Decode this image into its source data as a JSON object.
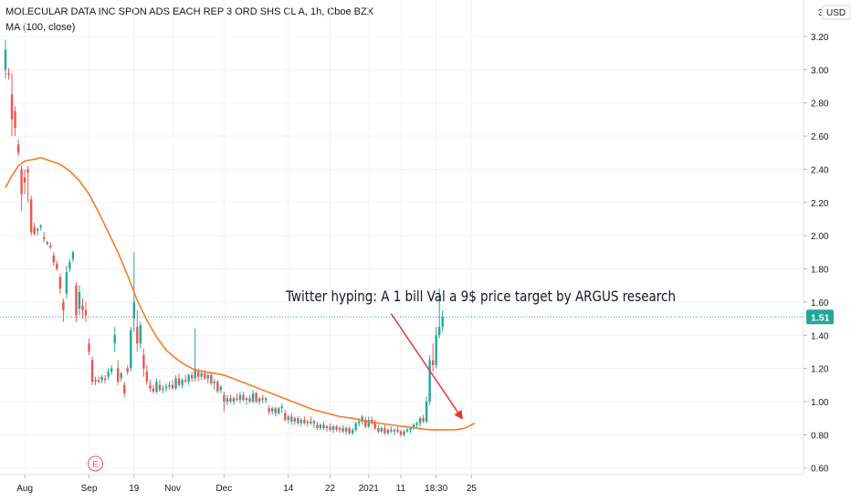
{
  "chart_data": {
    "type": "candlestick",
    "title": "MOLECULAR DATA INC SPON ADS EACH REP 3 ORD SHS CL A, 1h, Cboe BZX",
    "indicator_label": "MA (100, close)",
    "currency": "USD",
    "y_axis_top_label": "3",
    "ylim": [
      0.56,
      3.42
    ],
    "yticks": [
      "0.60",
      "0.80",
      "1.00",
      "1.20",
      "1.40",
      "1.60",
      "1.80",
      "2.00",
      "2.20",
      "2.40",
      "2.60",
      "2.80",
      "3.00",
      "3.20"
    ],
    "xticks": [
      {
        "i": 6,
        "label": "Aug"
      },
      {
        "i": 26,
        "label": "Sep"
      },
      {
        "i": 40,
        "label": "19"
      },
      {
        "i": 52,
        "label": "Nov"
      },
      {
        "i": 68,
        "label": "Dec"
      },
      {
        "i": 88,
        "label": "14"
      },
      {
        "i": 101,
        "label": "22"
      },
      {
        "i": 113,
        "label": "2021"
      },
      {
        "i": 123,
        "label": "11"
      },
      {
        "i": 134,
        "label": "18:30"
      },
      {
        "i": 145,
        "label": "25"
      }
    ],
    "last_price": "1.51",
    "last_price_value": 1.51,
    "earnings_marker": {
      "i": 28,
      "label": "E"
    },
    "annotation": "Twitter hyping: A 1 bill Val a 9$ price target by ARGUS research",
    "arrow": {
      "from": {
        "i": 120,
        "y": 1.53
      },
      "to": {
        "i": 142,
        "y": 0.9
      }
    },
    "colors": {
      "up": "#26a69a",
      "down": "#ef5350",
      "ma": "#f57c2b",
      "arrow": "#e53935",
      "price_label": "#26a69a",
      "text": "#131722",
      "axis": "#787b86"
    },
    "candles": [
      [
        3.0,
        3.18,
        2.95,
        3.12
      ],
      [
        2.98,
        3.01,
        2.94,
        2.97
      ],
      [
        2.85,
        2.98,
        2.6,
        2.7
      ],
      [
        2.75,
        2.78,
        2.6,
        2.65
      ],
      [
        2.55,
        2.58,
        2.48,
        2.5
      ],
      [
        2.4,
        2.42,
        2.15,
        2.25
      ],
      [
        2.35,
        2.4,
        2.25,
        2.32
      ],
      [
        2.4,
        2.42,
        2.2,
        2.38
      ],
      [
        2.22,
        2.24,
        2.0,
        2.02
      ],
      [
        2.05,
        2.08,
        2.0,
        2.01
      ],
      [
        2.03,
        2.05,
        2.0,
        2.04
      ],
      [
        2.05,
        2.07,
        2.03,
        2.06
      ],
      [
        1.99,
        2.02,
        1.96,
        1.98
      ],
      [
        1.95,
        1.97,
        1.94,
        1.96
      ],
      [
        1.94,
        1.96,
        1.92,
        1.93
      ],
      [
        1.88,
        1.9,
        1.82,
        1.84
      ],
      [
        1.83,
        1.85,
        1.79,
        1.8
      ],
      [
        1.75,
        1.77,
        1.65,
        1.68
      ],
      [
        1.6,
        1.62,
        1.48,
        1.55
      ],
      [
        1.65,
        1.82,
        1.62,
        1.78
      ],
      [
        1.8,
        1.86,
        1.78,
        1.84
      ],
      [
        1.86,
        1.91,
        1.84,
        1.9
      ],
      [
        1.7,
        1.72,
        1.48,
        1.52
      ],
      [
        1.56,
        1.7,
        1.52,
        1.66
      ],
      [
        1.58,
        1.62,
        1.5,
        1.55
      ],
      [
        1.55,
        1.6,
        1.48,
        1.52
      ],
      [
        1.35,
        1.38,
        1.28,
        1.3
      ],
      [
        1.25,
        1.27,
        1.1,
        1.12
      ],
      [
        1.12,
        1.15,
        1.1,
        1.13
      ],
      [
        1.13,
        1.15,
        1.11,
        1.12
      ],
      [
        1.13,
        1.16,
        1.11,
        1.15
      ],
      [
        1.14,
        1.16,
        1.11,
        1.13
      ],
      [
        1.15,
        1.2,
        1.13,
        1.18
      ],
      [
        1.18,
        1.22,
        1.16,
        1.2
      ],
      [
        1.35,
        1.45,
        1.3,
        1.4
      ],
      [
        1.2,
        1.25,
        1.1,
        1.12
      ],
      [
        1.14,
        1.18,
        1.12,
        1.17
      ],
      [
        1.1,
        1.12,
        1.03,
        1.05
      ],
      [
        1.2,
        1.22,
        1.16,
        1.18
      ],
      [
        1.2,
        1.45,
        1.18,
        1.43
      ],
      [
        1.5,
        1.9,
        1.42,
        1.6
      ],
      [
        1.45,
        1.55,
        1.3,
        1.35
      ],
      [
        1.35,
        1.48,
        1.32,
        1.46
      ],
      [
        1.28,
        1.32,
        1.15,
        1.2
      ],
      [
        1.18,
        1.22,
        1.1,
        1.12
      ],
      [
        1.1,
        1.13,
        1.06,
        1.08
      ],
      [
        1.08,
        1.1,
        1.05,
        1.06
      ],
      [
        1.06,
        1.14,
        1.05,
        1.12
      ],
      [
        1.1,
        1.13,
        1.06,
        1.07
      ],
      [
        1.07,
        1.1,
        1.05,
        1.08
      ],
      [
        1.08,
        1.11,
        1.06,
        1.09
      ],
      [
        1.09,
        1.12,
        1.07,
        1.1
      ],
      [
        1.1,
        1.13,
        1.07,
        1.08
      ],
      [
        1.08,
        1.16,
        1.07,
        1.14
      ],
      [
        1.14,
        1.17,
        1.09,
        1.1
      ],
      [
        1.1,
        1.14,
        1.08,
        1.13
      ],
      [
        1.13,
        1.16,
        1.11,
        1.12
      ],
      [
        1.12,
        1.17,
        1.1,
        1.16
      ],
      [
        1.16,
        1.18,
        1.12,
        1.14
      ],
      [
        1.14,
        1.44,
        1.12,
        1.2
      ],
      [
        1.18,
        1.2,
        1.12,
        1.15
      ],
      [
        1.15,
        1.19,
        1.13,
        1.17
      ],
      [
        1.17,
        1.19,
        1.13,
        1.14
      ],
      [
        1.14,
        1.17,
        1.11,
        1.16
      ],
      [
        1.16,
        1.18,
        1.1,
        1.11
      ],
      [
        1.11,
        1.14,
        1.07,
        1.12
      ],
      [
        1.12,
        1.13,
        1.05,
        1.06
      ],
      [
        1.07,
        1.1,
        1.05,
        1.09
      ],
      [
        1.04,
        1.06,
        0.94,
        1.0
      ],
      [
        1.0,
        1.04,
        0.98,
        1.02
      ],
      [
        1.02,
        1.04,
        0.99,
        1.0
      ],
      [
        1.0,
        1.03,
        0.98,
        1.02
      ],
      [
        1.02,
        1.05,
        1.0,
        1.01
      ],
      [
        1.01,
        1.06,
        0.99,
        1.04
      ],
      [
        1.04,
        1.06,
        1.0,
        1.01
      ],
      [
        1.01,
        1.03,
        0.98,
        1.02
      ],
      [
        1.02,
        1.04,
        0.99,
        1.0
      ],
      [
        1.0,
        1.07,
        0.99,
        1.05
      ],
      [
        1.05,
        1.06,
        0.99,
        1.0
      ],
      [
        1.0,
        1.03,
        0.98,
        1.02
      ],
      [
        1.02,
        1.04,
        0.99,
        1.01
      ],
      [
        1.01,
        1.03,
        0.99,
        1.02
      ],
      [
        0.96,
        0.98,
        0.92,
        0.94
      ],
      [
        0.94,
        0.97,
        0.92,
        0.96
      ],
      [
        0.96,
        0.97,
        0.91,
        0.93
      ],
      [
        0.93,
        0.97,
        0.92,
        0.96
      ],
      [
        0.96,
        0.99,
        0.93,
        0.97
      ],
      [
        0.93,
        0.95,
        0.88,
        0.89
      ],
      [
        0.89,
        0.92,
        0.87,
        0.91
      ],
      [
        0.91,
        0.93,
        0.86,
        0.88
      ],
      [
        0.88,
        0.91,
        0.86,
        0.9
      ],
      [
        0.9,
        0.91,
        0.86,
        0.87
      ],
      [
        0.87,
        0.9,
        0.85,
        0.89
      ],
      [
        0.89,
        0.91,
        0.86,
        0.87
      ],
      [
        0.87,
        0.89,
        0.85,
        0.88
      ],
      [
        0.88,
        0.91,
        0.86,
        0.87
      ],
      [
        0.87,
        0.89,
        0.84,
        0.88
      ],
      [
        0.86,
        0.88,
        0.83,
        0.84
      ],
      [
        0.84,
        0.87,
        0.83,
        0.86
      ],
      [
        0.86,
        0.88,
        0.83,
        0.84
      ],
      [
        0.84,
        0.86,
        0.82,
        0.85
      ],
      [
        0.85,
        0.87,
        0.82,
        0.83
      ],
      [
        0.83,
        0.86,
        0.81,
        0.85
      ],
      [
        0.85,
        0.86,
        0.82,
        0.83
      ],
      [
        0.83,
        0.85,
        0.81,
        0.84
      ],
      [
        0.84,
        0.86,
        0.81,
        0.82
      ],
      [
        0.82,
        0.85,
        0.8,
        0.84
      ],
      [
        0.84,
        0.85,
        0.8,
        0.81
      ],
      [
        0.81,
        0.84,
        0.8,
        0.83
      ],
      [
        0.83,
        0.88,
        0.82,
        0.87
      ],
      [
        0.87,
        0.9,
        0.85,
        0.88
      ],
      [
        0.88,
        0.92,
        0.86,
        0.91
      ],
      [
        0.89,
        0.91,
        0.84,
        0.85
      ],
      [
        0.85,
        0.91,
        0.84,
        0.89
      ],
      [
        0.89,
        0.91,
        0.86,
        0.87
      ],
      [
        0.87,
        0.89,
        0.83,
        0.84
      ],
      [
        0.84,
        0.86,
        0.81,
        0.82
      ],
      [
        0.82,
        0.85,
        0.81,
        0.84
      ],
      [
        0.84,
        0.86,
        0.8,
        0.81
      ],
      [
        0.81,
        0.84,
        0.8,
        0.83
      ],
      [
        0.83,
        0.85,
        0.81,
        0.82
      ],
      [
        0.82,
        0.84,
        0.8,
        0.83
      ],
      [
        0.83,
        0.85,
        0.81,
        0.82
      ],
      [
        0.82,
        0.83,
        0.79,
        0.8
      ],
      [
        0.8,
        0.83,
        0.79,
        0.82
      ],
      [
        0.82,
        0.84,
        0.81,
        0.83
      ],
      [
        0.83,
        0.85,
        0.81,
        0.84
      ],
      [
        0.84,
        0.87,
        0.83,
        0.86
      ],
      [
        0.86,
        0.88,
        0.84,
        0.87
      ],
      [
        0.87,
        0.91,
        0.85,
        0.9
      ],
      [
        0.9,
        0.92,
        0.87,
        0.88
      ],
      [
        0.88,
        1.03,
        0.87,
        1.0
      ],
      [
        1.0,
        1.28,
        0.98,
        1.25
      ],
      [
        1.25,
        1.35,
        1.18,
        1.22
      ],
      [
        1.22,
        1.45,
        1.2,
        1.4
      ],
      [
        1.4,
        1.68,
        1.38,
        1.45
      ],
      [
        1.45,
        1.55,
        1.42,
        1.51
      ]
    ],
    "ma100": [
      [
        0,
        2.29
      ],
      [
        2,
        2.36
      ],
      [
        4,
        2.42
      ],
      [
        6,
        2.45
      ],
      [
        9,
        2.46
      ],
      [
        11,
        2.47
      ],
      [
        14,
        2.45
      ],
      [
        17,
        2.43
      ],
      [
        20,
        2.39
      ],
      [
        23,
        2.33
      ],
      [
        26,
        2.25
      ],
      [
        29,
        2.14
      ],
      [
        32,
        2.02
      ],
      [
        35,
        1.9
      ],
      [
        38,
        1.76
      ],
      [
        41,
        1.61
      ],
      [
        44,
        1.49
      ],
      [
        47,
        1.39
      ],
      [
        50,
        1.31
      ],
      [
        53,
        1.26
      ],
      [
        56,
        1.22
      ],
      [
        59,
        1.19
      ],
      [
        62,
        1.18
      ],
      [
        65,
        1.17
      ],
      [
        68,
        1.16
      ],
      [
        72,
        1.13
      ],
      [
        76,
        1.1
      ],
      [
        80,
        1.07
      ],
      [
        84,
        1.04
      ],
      [
        88,
        1.01
      ],
      [
        92,
        0.98
      ],
      [
        96,
        0.95
      ],
      [
        100,
        0.93
      ],
      [
        104,
        0.91
      ],
      [
        108,
        0.9
      ],
      [
        112,
        0.88
      ],
      [
        116,
        0.87
      ],
      [
        120,
        0.86
      ],
      [
        124,
        0.85
      ],
      [
        128,
        0.84
      ],
      [
        132,
        0.83
      ],
      [
        136,
        0.83
      ],
      [
        140,
        0.83
      ],
      [
        143,
        0.84
      ],
      [
        146,
        0.87
      ]
    ]
  }
}
